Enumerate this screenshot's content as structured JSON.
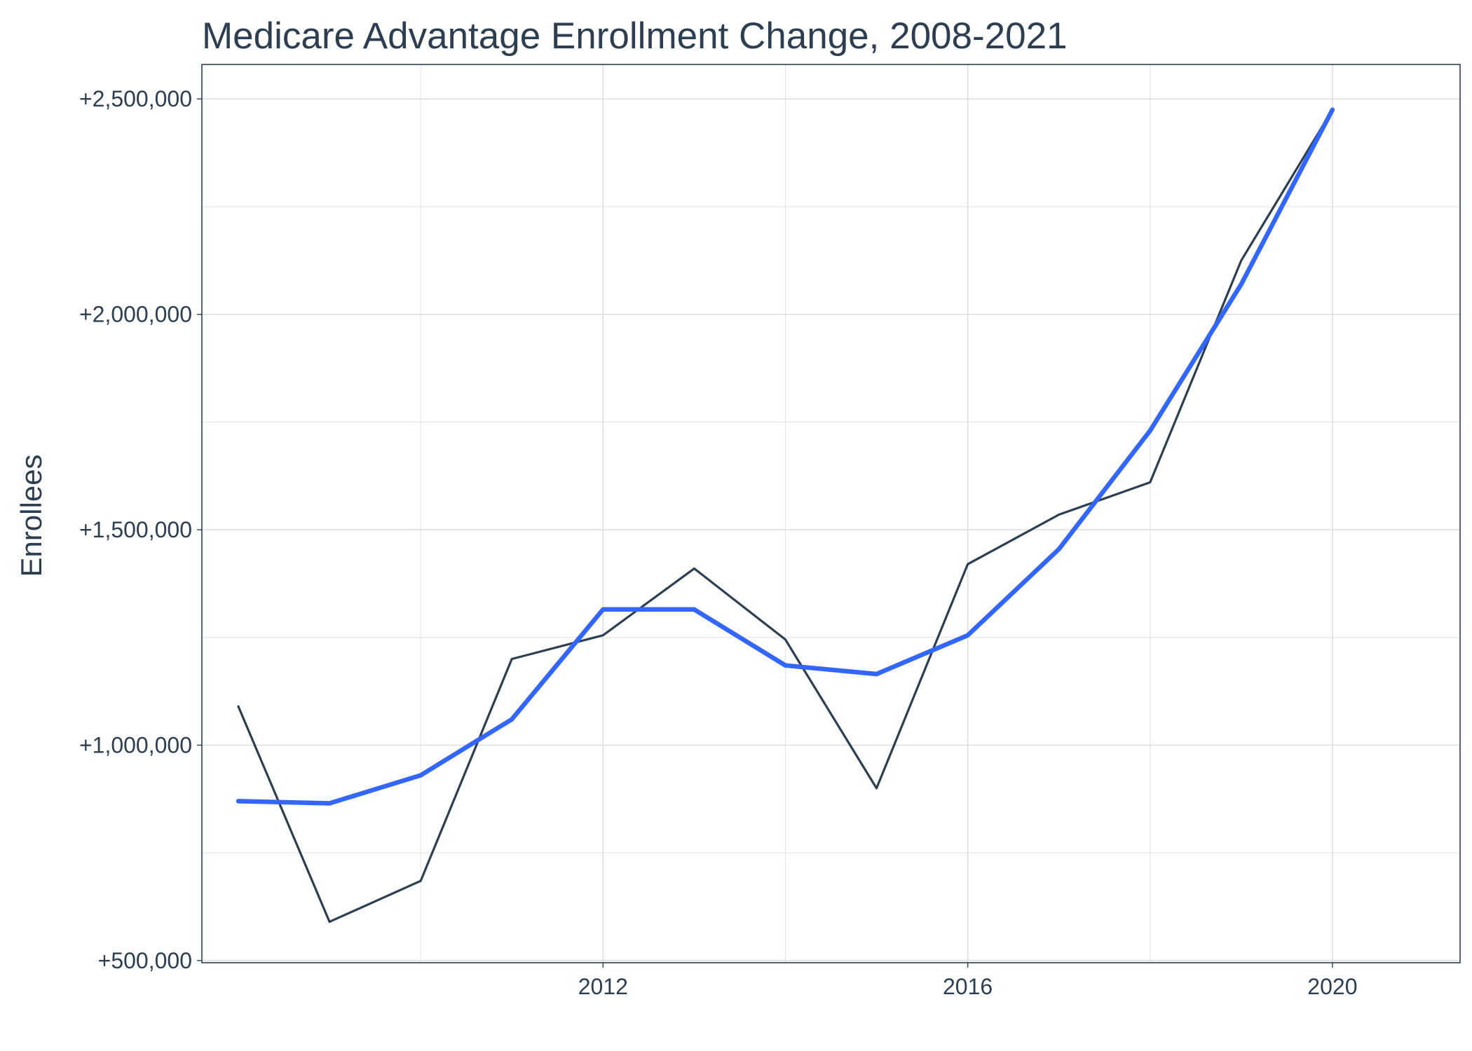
{
  "chart_data": {
    "type": "line",
    "title": "Medicare Advantage Enrollment Change, 2008-2021",
    "xlabel": "",
    "ylabel": "Enrollees",
    "xlim": [
      2007.6,
      2021.4
    ],
    "ylim": [
      495000,
      2580000
    ],
    "x_ticks": [
      2012,
      2016,
      2020
    ],
    "x_tick_labels": [
      "2012",
      "2016",
      "2020"
    ],
    "x_minor_ticks": [
      2010,
      2014,
      2018
    ],
    "y_ticks": [
      500000,
      1000000,
      1500000,
      2000000,
      2500000
    ],
    "y_tick_labels": [
      "+500,000",
      "+1,000,000",
      "+1,500,000",
      "+2,000,000",
      "+2,500,000"
    ],
    "y_minor_ticks": [
      750000,
      1250000,
      1750000,
      2250000
    ],
    "grid": true,
    "legend": "none",
    "x": [
      2008,
      2009,
      2010,
      2011,
      2012,
      2013,
      2014,
      2015,
      2016,
      2017,
      2018,
      2019,
      2020,
      2021
    ],
    "series": [
      {
        "key": "actual",
        "color": "#2c3e50",
        "values": [
          1090000,
          590000,
          685000,
          1200000,
          1255000,
          1410000,
          1245000,
          900000,
          1420000,
          1535000,
          1610000,
          2125000,
          2475000,
          null
        ]
      },
      {
        "key": "smoothed",
        "color": "#3366ff",
        "values": [
          870000,
          865000,
          930000,
          1060000,
          1315000,
          1315000,
          1185000,
          1165000,
          1255000,
          1455000,
          1730000,
          2070000,
          2475000,
          null
        ]
      }
    ]
  }
}
